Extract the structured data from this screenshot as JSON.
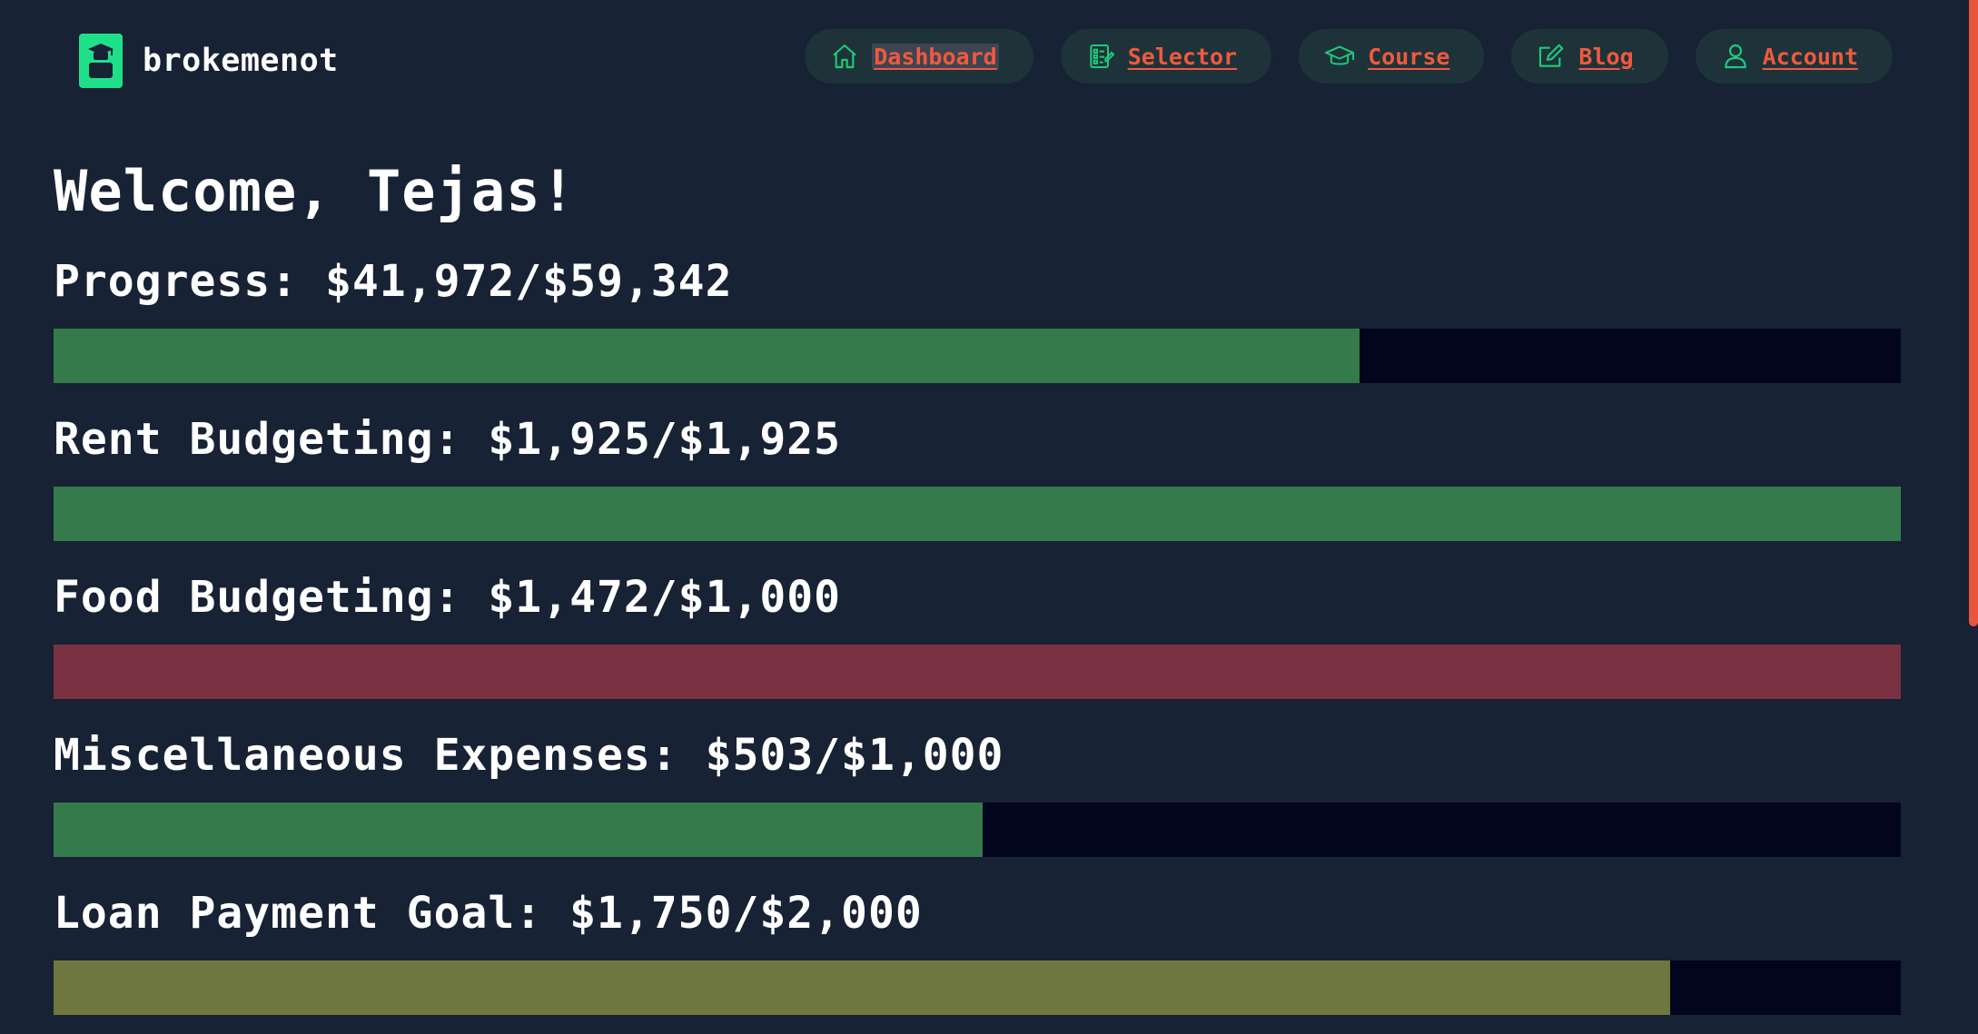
{
  "brand": {
    "name": "brokemenot"
  },
  "nav": {
    "items": [
      {
        "label": "Dashboard",
        "icon": "home-icon"
      },
      {
        "label": "Selector",
        "icon": "clipboard-list-icon"
      },
      {
        "label": "Course",
        "icon": "graduation-cap-icon"
      },
      {
        "label": "Blog",
        "icon": "edit-icon"
      },
      {
        "label": "Account",
        "icon": "user-icon"
      }
    ]
  },
  "welcome": "Welcome, Tejas!",
  "meters": [
    {
      "label": "Progress: $41,972/$59,342",
      "fraction": 0.707,
      "color": "#357a4b"
    },
    {
      "label": "Rent Budgeting: $1,925/$1,925",
      "fraction": 1.0,
      "color": "#357a4b"
    },
    {
      "label": "Food Budgeting: $1,472/$1,000",
      "fraction": 1.0,
      "color": "#7a3142"
    },
    {
      "label": "Miscellaneous Expenses: $503/$1,000",
      "fraction": 0.503,
      "color": "#357a4b"
    },
    {
      "label": "Loan Payment Goal: $1,750/$2,000",
      "fraction": 0.875,
      "color": "#6e773f"
    }
  ],
  "colors": {
    "background": "#172234",
    "accent": "#f0593e",
    "brand": "#1fe089",
    "track": "#03051e"
  }
}
